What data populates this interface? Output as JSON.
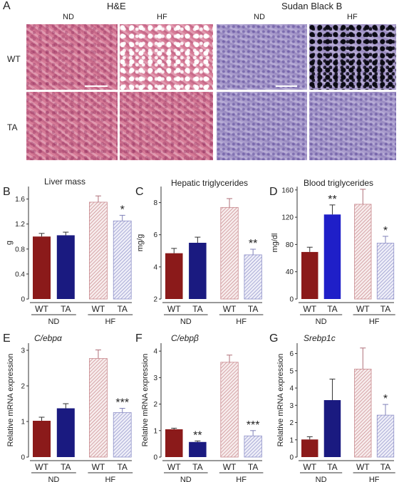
{
  "figure": {
    "panel_letters": [
      "A",
      "B",
      "C",
      "D",
      "E",
      "F",
      "G"
    ],
    "histology": {
      "he_title": "H&E",
      "sb_title": "Sudan Black B",
      "he_cols": [
        "ND",
        "HF"
      ],
      "sb_cols": [
        "ND",
        "HF"
      ],
      "rows": [
        "WT",
        "TA"
      ]
    },
    "group_labels": {
      "bars": [
        "WT",
        "TA",
        "WT",
        "TA"
      ],
      "diets": [
        "ND",
        "HF"
      ]
    },
    "colors": {
      "wt_nd": "#8b1a1a",
      "ta_nd": "#1a1a80",
      "ta_nd_bright": "#1f1fc8",
      "wt_hf_hatch": "#c8898e",
      "ta_hf_hatch": "#8f91c9"
    }
  },
  "chart_data": [
    {
      "id": "B",
      "type": "bar",
      "title": "Liver mass",
      "title_italic": false,
      "ylabel": "g",
      "ylim": [
        0,
        1.8
      ],
      "yticks": [
        "0",
        "0.4",
        "0.8",
        "1.2",
        "1.6"
      ],
      "ytick_values": [
        0,
        0.4,
        0.8,
        1.2,
        1.6
      ],
      "categories": [
        "WT ND",
        "TA ND",
        "WT HF",
        "TA HF"
      ],
      "values": [
        1.0,
        1.02,
        1.55,
        1.25
      ],
      "errors": [
        0.05,
        0.05,
        0.1,
        0.09
      ],
      "significance": [
        "",
        "",
        "",
        "*"
      ]
    },
    {
      "id": "C",
      "type": "bar",
      "title": "Hepatic triglycerides",
      "title_italic": false,
      "ylabel": "mg/g",
      "ylim": [
        2,
        9
      ],
      "yticks": [
        "2",
        "4",
        "6",
        "8"
      ],
      "ytick_values": [
        2,
        4,
        6,
        8
      ],
      "categories": [
        "WT ND",
        "TA ND",
        "WT HF",
        "TA HF"
      ],
      "values": [
        4.85,
        5.5,
        7.7,
        4.75
      ],
      "errors": [
        0.3,
        0.35,
        0.55,
        0.35
      ],
      "significance": [
        "",
        "",
        "",
        "**"
      ]
    },
    {
      "id": "D",
      "type": "bar",
      "title": "Blood triglycerides",
      "title_italic": false,
      "ylabel": "mg/dl",
      "ylim": [
        0,
        165
      ],
      "yticks": [
        "0",
        "40",
        "80",
        "120",
        "160"
      ],
      "ytick_values": [
        0,
        40,
        80,
        120,
        160
      ],
      "categories": [
        "WT ND",
        "TA ND",
        "WT HF",
        "TA HF"
      ],
      "values": [
        69,
        124,
        139,
        82
      ],
      "errors": [
        7,
        14,
        22,
        10
      ],
      "significance": [
        "",
        "**",
        "",
        "*"
      ]
    },
    {
      "id": "E",
      "type": "bar",
      "title": "C/ebpα",
      "title_italic": true,
      "ylabel": "Relative mRNA expression",
      "ylim": [
        0,
        3.2
      ],
      "yticks": [
        "0",
        "1",
        "2",
        "3"
      ],
      "ytick_values": [
        0,
        1,
        2,
        3
      ],
      "categories": [
        "WT ND",
        "TA ND",
        "WT HF",
        "TA HF"
      ],
      "values": [
        1.02,
        1.37,
        2.77,
        1.25
      ],
      "errors": [
        0.1,
        0.13,
        0.24,
        0.12
      ],
      "significance": [
        "",
        "",
        "",
        "***"
      ]
    },
    {
      "id": "F",
      "type": "bar",
      "title": "C/ebpβ",
      "title_italic": true,
      "ylabel": "Relative mRNA expression",
      "ylim": [
        0,
        4.3
      ],
      "yticks": [
        "0",
        "1",
        "2",
        "3",
        "4"
      ],
      "ytick_values": [
        0,
        1,
        2,
        3,
        4
      ],
      "categories": [
        "WT ND",
        "TA ND",
        "WT HF",
        "TA HF"
      ],
      "values": [
        1.05,
        0.57,
        3.58,
        0.8
      ],
      "errors": [
        0.04,
        0.04,
        0.27,
        0.2
      ],
      "significance": [
        "",
        "**",
        "",
        "***"
      ]
    },
    {
      "id": "G",
      "type": "bar",
      "title": "Srebp1c",
      "title_italic": true,
      "ylabel": "Relative mRNA expression",
      "ylim": [
        0,
        6.6
      ],
      "yticks": [
        "0",
        "1",
        "2",
        "3",
        "4",
        "5",
        "6"
      ],
      "ytick_values": [
        0,
        1,
        2,
        3,
        4,
        5,
        6
      ],
      "categories": [
        "WT ND",
        "TA ND",
        "WT HF",
        "TA HF"
      ],
      "values": [
        1.02,
        3.3,
        5.1,
        2.43
      ],
      "errors": [
        0.16,
        1.22,
        1.22,
        0.62
      ],
      "significance": [
        "",
        "",
        "",
        "*"
      ]
    }
  ]
}
